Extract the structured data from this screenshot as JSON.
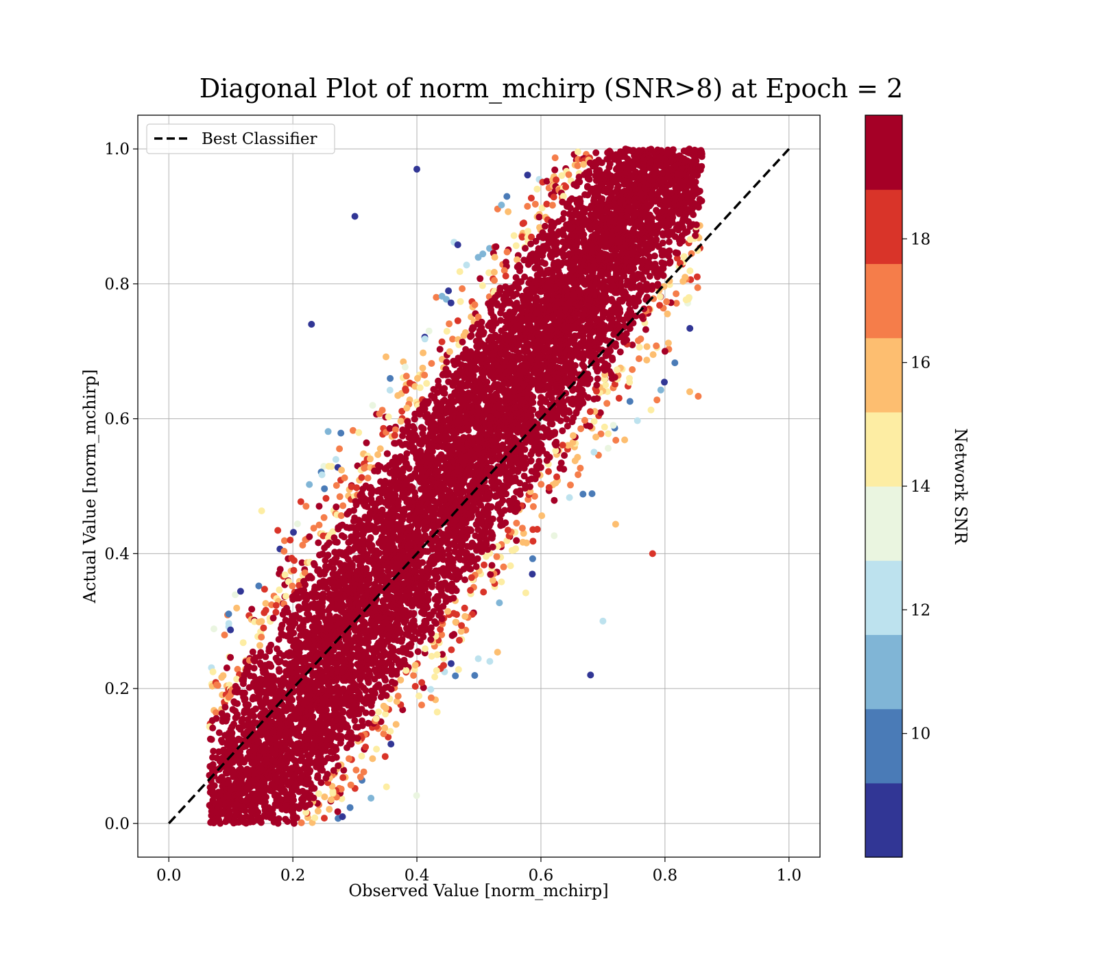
{
  "chart_data": {
    "type": "scatter",
    "title": "Diagonal Plot of norm_mchirp (SNR>8) at Epoch = 2",
    "xlabel": "Observed Value [norm_mchirp]",
    "ylabel": "Actual Value [norm_mchirp]",
    "xlim": [
      -0.05,
      1.05
    ],
    "ylim": [
      -0.05,
      1.05
    ],
    "xticks": [
      "0.0",
      "0.2",
      "0.4",
      "0.6",
      "0.8",
      "1.0"
    ],
    "yticks": [
      "0.0",
      "0.2",
      "0.4",
      "0.6",
      "0.8",
      "1.0"
    ],
    "grid": true,
    "legend": {
      "position": "top-left",
      "entries": [
        "Best Classifier"
      ]
    },
    "reference_line": {
      "name": "Best Classifier",
      "style": "dashed",
      "color": "#000000",
      "x": [
        0,
        1
      ],
      "y": [
        0,
        1
      ]
    },
    "colorbar": {
      "label": "Network SNR",
      "range": [
        8,
        20
      ],
      "ticks": [
        "10",
        "12",
        "14",
        "16",
        "18"
      ],
      "bins": [
        {
          "from": 8,
          "to": 9.2,
          "color": "#313695"
        },
        {
          "from": 9.2,
          "to": 10.4,
          "color": "#4a7bb7"
        },
        {
          "from": 10.4,
          "to": 11.6,
          "color": "#80b5d6"
        },
        {
          "from": 11.6,
          "to": 12.8,
          "color": "#bde2ee"
        },
        {
          "from": 12.8,
          "to": 14.0,
          "color": "#eaf5e0"
        },
        {
          "from": 14.0,
          "to": 15.2,
          "color": "#fdeda3"
        },
        {
          "from": 15.2,
          "to": 16.4,
          "color": "#fdbe70"
        },
        {
          "from": 16.4,
          "to": 17.6,
          "color": "#f57d4a"
        },
        {
          "from": 17.6,
          "to": 18.8,
          "color": "#d93429"
        },
        {
          "from": 18.8,
          "to": 20.0,
          "color": "#a50026"
        }
      ]
    },
    "series": [
      {
        "distribution": "dense band along the diagonal, width roughly ±0.15, observed 0.07–0.86, actual 0.0–1.0",
        "sample_points": [
          {
            "x": 0.1,
            "y": 0.05,
            "snr": 20
          },
          {
            "x": 0.15,
            "y": 0.15,
            "snr": 20
          },
          {
            "x": 0.2,
            "y": 0.25,
            "snr": 20
          },
          {
            "x": 0.3,
            "y": 0.3,
            "snr": 20
          },
          {
            "x": 0.4,
            "y": 0.45,
            "snr": 20
          },
          {
            "x": 0.5,
            "y": 0.5,
            "snr": 20
          },
          {
            "x": 0.6,
            "y": 0.65,
            "snr": 20
          },
          {
            "x": 0.7,
            "y": 0.75,
            "snr": 20
          },
          {
            "x": 0.75,
            "y": 0.9,
            "snr": 20
          },
          {
            "x": 0.8,
            "y": 0.7,
            "snr": 19
          },
          {
            "x": 0.3,
            "y": 0.9,
            "snr": 8.5
          },
          {
            "x": 0.4,
            "y": 0.97,
            "snr": 8.5
          },
          {
            "x": 0.23,
            "y": 0.74,
            "snr": 8.5
          },
          {
            "x": 0.7,
            "y": 0.3,
            "snr": 12
          },
          {
            "x": 0.68,
            "y": 0.22,
            "snr": 8.5
          },
          {
            "x": 0.84,
            "y": 0.64,
            "snr": 16
          },
          {
            "x": 0.78,
            "y": 0.4,
            "snr": 18
          },
          {
            "x": 0.28,
            "y": 0.01,
            "snr": 8.5
          }
        ]
      }
    ]
  }
}
